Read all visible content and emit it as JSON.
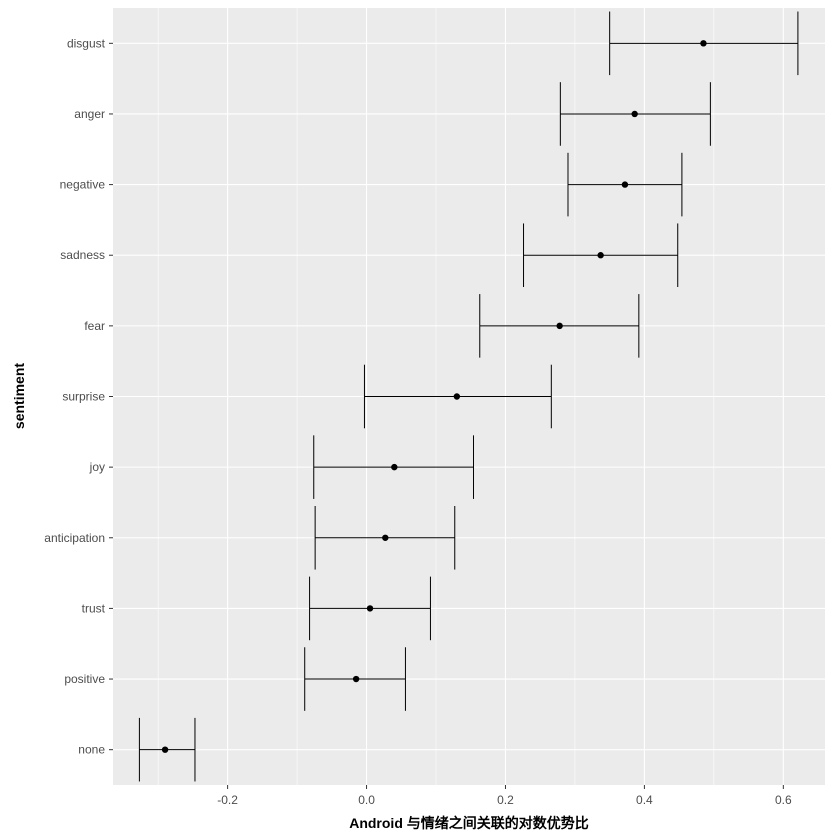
{
  "chart_data": {
    "type": "scatter",
    "subtype": "point-with-errorbars",
    "title": "",
    "xlabel": "Android 与情绪之间关联的对数优势比",
    "ylabel": "sentiment",
    "xlim": [
      -0.365,
      0.66
    ],
    "x_ticks": [
      -0.2,
      0.0,
      0.2,
      0.4,
      0.6
    ],
    "x_tick_labels": [
      "-0.2",
      "0.0",
      "0.2",
      "0.4",
      "0.6"
    ],
    "categories": [
      "disgust",
      "anger",
      "negative",
      "sadness",
      "fear",
      "surprise",
      "joy",
      "anticipation",
      "trust",
      "positive",
      "none"
    ],
    "estimate": [
      0.485,
      0.386,
      0.372,
      0.337,
      0.278,
      0.13,
      0.04,
      0.027,
      0.005,
      -0.015,
      -0.29
    ],
    "lower": [
      0.35,
      0.279,
      0.29,
      0.226,
      0.163,
      -0.003,
      -0.076,
      -0.074,
      -0.082,
      -0.089,
      -0.327
    ],
    "upper": [
      0.621,
      0.495,
      0.454,
      0.448,
      0.392,
      0.266,
      0.154,
      0.127,
      0.092,
      0.056,
      -0.247
    ],
    "grid": true,
    "legend": "none",
    "colors": {
      "panel": "#ebebeb",
      "grid": "#ffffff",
      "mark": "#000000",
      "tick_text": "#4d4d4d",
      "tick_mark": "#333333"
    }
  }
}
